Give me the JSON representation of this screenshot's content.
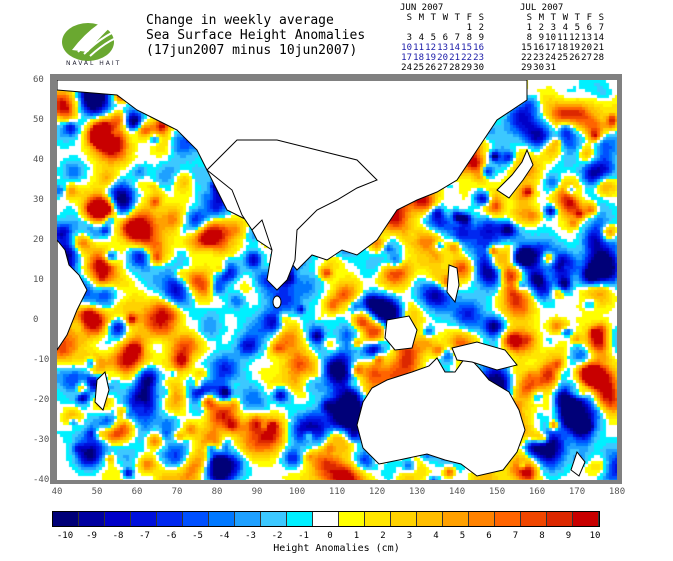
{
  "logo": {
    "text": "NAVAL HAIT"
  },
  "title": {
    "line1": "Change in weekly average",
    "line2": "Sea Surface Height Anomalies",
    "line3": "(17jun2007 minus 10jun2007)"
  },
  "calendars": [
    {
      "month": "JUN 2007",
      "days_header": [
        "S",
        "M",
        "T",
        "W",
        "T",
        "F",
        "S"
      ],
      "weeks": [
        [
          "",
          "",
          "",
          "",
          "",
          "1",
          "2"
        ],
        [
          "3",
          "4",
          "5",
          "6",
          "7",
          "8",
          "9"
        ],
        [
          "10",
          "11",
          "12",
          "13",
          "14",
          "15",
          "16"
        ],
        [
          "17",
          "18",
          "19",
          "20",
          "21",
          "22",
          "23"
        ],
        [
          "24",
          "25",
          "26",
          "27",
          "28",
          "29",
          "30"
        ]
      ],
      "highlighted_weeks": [
        2,
        3
      ]
    },
    {
      "month": "JUL 2007",
      "days_header": [
        "S",
        "M",
        "T",
        "W",
        "T",
        "F",
        "S"
      ],
      "weeks": [
        [
          "1",
          "2",
          "3",
          "4",
          "5",
          "6",
          "7"
        ],
        [
          "8",
          "9",
          "10",
          "11",
          "12",
          "13",
          "14"
        ],
        [
          "15",
          "16",
          "17",
          "18",
          "19",
          "20",
          "21"
        ],
        [
          "22",
          "23",
          "24",
          "25",
          "26",
          "27",
          "28"
        ],
        [
          "29",
          "30",
          "31",
          "",
          "",
          "",
          ""
        ]
      ],
      "highlighted_weeks": []
    }
  ],
  "map": {
    "lat_ticks": [
      "60",
      "50",
      "40",
      "30",
      "20",
      "10",
      "0",
      "-10",
      "-20",
      "-30",
      "-40"
    ],
    "lon_ticks": [
      "40",
      "50",
      "60",
      "70",
      "80",
      "90",
      "100",
      "110",
      "120",
      "130",
      "140",
      "150",
      "160",
      "170",
      "180"
    ]
  },
  "colorbar": {
    "labels": [
      "-10",
      "-9",
      "-8",
      "-7",
      "-6",
      "-5",
      "-4",
      "-3",
      "-2",
      "-1",
      "0",
      "1",
      "2",
      "3",
      "4",
      "5",
      "6",
      "7",
      "8",
      "9",
      "10"
    ],
    "colors": [
      "#000078",
      "#0000a0",
      "#0000c8",
      "#0010dc",
      "#0028f0",
      "#0050ff",
      "#0078ff",
      "#1ea0ff",
      "#3cc8ff",
      "#00f0ff",
      "#ffffff",
      "#ffff00",
      "#ffe600",
      "#ffd200",
      "#ffbe00",
      "#ffa000",
      "#ff8200",
      "#ff6400",
      "#f04600",
      "#dc2800",
      "#c80000"
    ],
    "title": "Height Anomalies (cm)"
  }
}
